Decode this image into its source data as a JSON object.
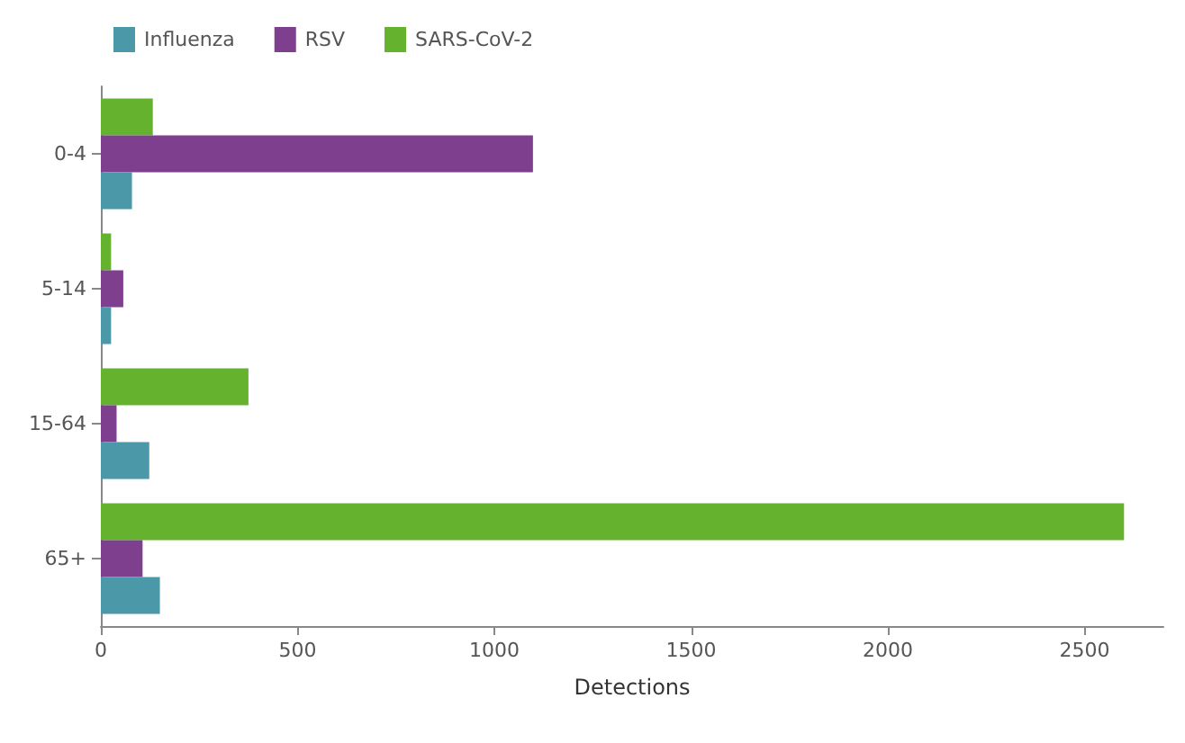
{
  "chart_data": {
    "type": "bar",
    "orientation": "horizontal",
    "xlabel": "Detections",
    "categories": [
      "0-4",
      "5-14",
      "15-64",
      "65+"
    ],
    "series": [
      {
        "name": "Influenza",
        "color": "#4a98a8",
        "values": [
          79,
          26,
          123,
          150
        ]
      },
      {
        "name": "RSV",
        "color": "#7f3f8f",
        "values": [
          1098,
          57,
          40,
          106
        ]
      },
      {
        "name": "SARS-CoV-2",
        "color": "#65b22e",
        "values": [
          132,
          26,
          375,
          2600
        ]
      }
    ],
    "xlim": [
      0,
      2700
    ],
    "xticks": [
      0,
      500,
      1000,
      1500,
      2000,
      2500
    ],
    "grid": false,
    "legend": "top left"
  }
}
